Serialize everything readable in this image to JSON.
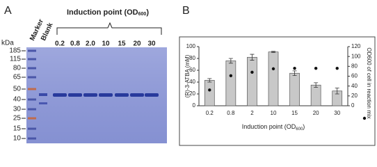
{
  "gel": {
    "panel_label": "A",
    "title_main": "Induction point (OD",
    "title_sub": "600",
    "title_end": ")",
    "lane_labels": [
      "Marker",
      "Blank",
      "0.2",
      "0.8",
      "2.0",
      "10",
      "15",
      "20",
      "30"
    ],
    "size_unit": "kDa",
    "sizes": [
      "185",
      "115",
      "80",
      "65",
      "50",
      "40",
      "30",
      "25",
      "15",
      "10"
    ]
  },
  "chart_data": {
    "type": "bar",
    "panel_label": "B",
    "categories": [
      "0.2",
      "0.8",
      "2",
      "10",
      "15",
      "20",
      "30"
    ],
    "series": [
      {
        "values": [
          43,
          76,
          82,
          91,
          55,
          35,
          25
        ],
        "errors": [
          3,
          4,
          5,
          1,
          4,
          4,
          5
        ],
        "color": "#c8c8c8"
      },
      {
        "values": [
          32,
          61,
          68,
          75,
          76,
          76,
          76
        ],
        "color": "#111111",
        "axis": "y2",
        "marker": "dot"
      }
    ],
    "ylabel": "(R)-3-ATBA (mM)",
    "y2label": "OD600 of cell in reaction mix",
    "xlabel_main": "Induction point (OD",
    "xlabel_sub": "600",
    "xlabel_end": ")",
    "ylim": [
      0,
      100
    ],
    "yticks": [
      0,
      20,
      40,
      60,
      80,
      100
    ],
    "y2lim": [
      0,
      120
    ],
    "y2ticks": [
      0,
      20,
      40,
      60,
      80,
      100,
      120
    ]
  }
}
